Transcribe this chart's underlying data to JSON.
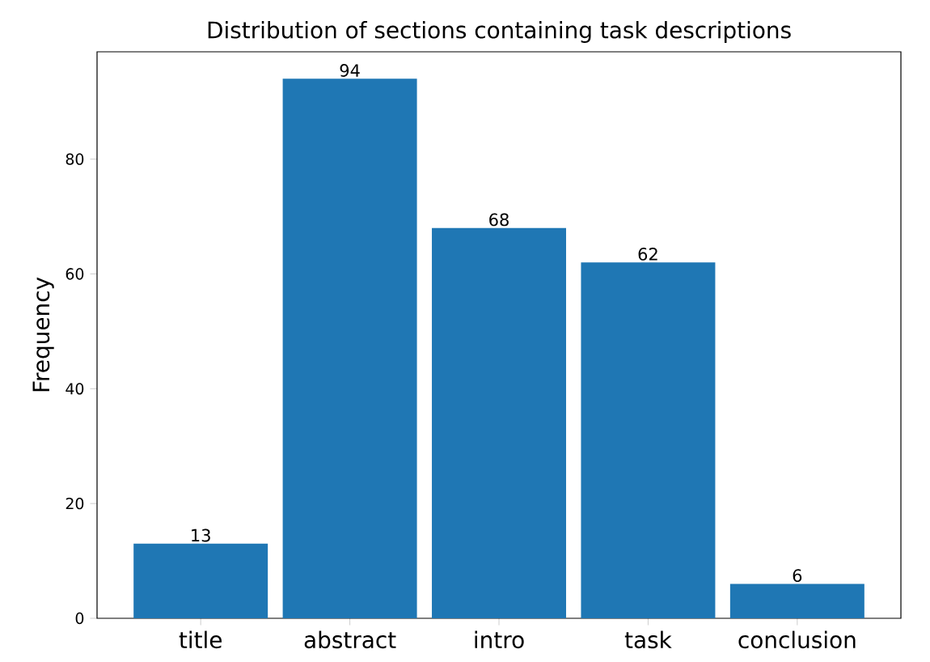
{
  "chart_data": {
    "type": "bar",
    "title": "Distribution of sections containing task descriptions",
    "ylabel": "Frequency",
    "categories": [
      "title",
      "abstract",
      "intro",
      "task",
      "conclusion"
    ],
    "values": [
      13,
      94,
      68,
      62,
      6
    ],
    "color": "#1f77b4",
    "data_labels": true,
    "ylim": [
      0,
      98.7
    ],
    "yticks": [
      0,
      20,
      40,
      60,
      80
    ],
    "grid": false
  }
}
